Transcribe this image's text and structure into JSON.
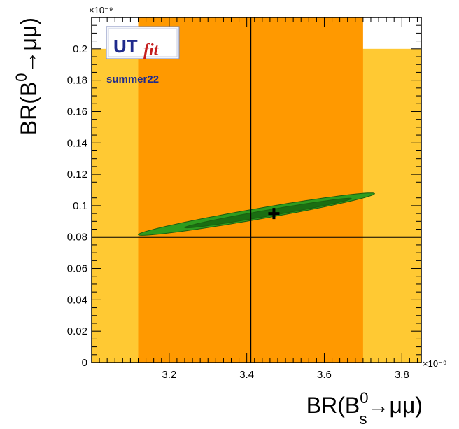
{
  "chart_data": {
    "type": "contour",
    "x_axis": {
      "title_base": "BR(B",
      "title_sup": "0",
      "title_sub": "s",
      "title_tail": "→μμ)",
      "range": [
        3.0,
        3.85
      ],
      "ticks": [
        3.2,
        3.4,
        3.6,
        3.8
      ],
      "tick_labels": [
        "3.2",
        "3.4",
        "3.6",
        "3.8"
      ],
      "exponent_label": "×10⁻⁹"
    },
    "y_axis": {
      "title_base": "BR(B",
      "title_sup": "0",
      "title_tail": "→μμ)",
      "range": [
        0,
        0.22
      ],
      "ticks": [
        0,
        0.02,
        0.04,
        0.06,
        0.08,
        0.1,
        0.12,
        0.14,
        0.16,
        0.18,
        0.2
      ],
      "tick_labels": [
        "0",
        "0.02",
        "0.04",
        "0.06",
        "0.08",
        "0.1",
        "0.12",
        "0.14",
        "0.16",
        "0.18",
        "0.2"
      ],
      "exponent_label": "×10⁻⁹"
    },
    "bands": [
      {
        "level": "outer",
        "x": [
          3.0,
          3.85
        ],
        "y": [
          0,
          0.2
        ],
        "color": "#ffc933"
      },
      {
        "level": "inner",
        "x": [
          3.12,
          3.7
        ],
        "y": [
          0,
          0.22
        ],
        "color": "#ff9900"
      }
    ],
    "reference_lines": {
      "x": 3.41,
      "y": 0.08
    },
    "central_value": {
      "x": 3.47,
      "y": 0.095
    },
    "ellipses": [
      {
        "level": "outer",
        "cx": 3.425,
        "cy": 0.0946,
        "rx": 0.305,
        "ry": 0.0035,
        "slope": 0.0429,
        "color": "#2e9c1e"
      },
      {
        "level": "inner",
        "cx": 3.455,
        "cy": 0.0953,
        "rx": 0.215,
        "ry": 0.002,
        "slope": 0.0429,
        "color": "#1a6e12"
      }
    ],
    "grid": false,
    "legend": "none"
  },
  "logo": {
    "main": "UT",
    "sub": "fit",
    "season": "summer22",
    "main_color": "#1f2a8c",
    "sub_color": "#c41e1e",
    "season_color": "#1f2a8c"
  }
}
